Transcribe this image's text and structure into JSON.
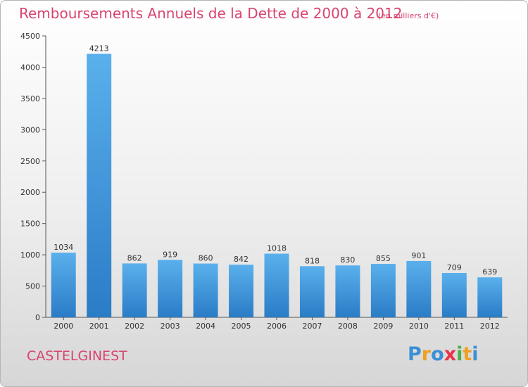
{
  "header": {
    "title": "Remboursements Annuels de la Dette de 2000 à 2012",
    "unit": "(en milliers d'€)"
  },
  "footer": {
    "commune": "CASTELGINEST",
    "logo_letters": [
      "P",
      "r",
      "o",
      "x",
      "i",
      "t",
      "i"
    ],
    "logo_colors": [
      "#3a8fd6",
      "#f0a020",
      "#3a8fd6",
      "#e8334a",
      "#49b049",
      "#f0a020",
      "#3a8fd6"
    ]
  },
  "chart_data": {
    "type": "bar",
    "categories": [
      "2000",
      "2001",
      "2002",
      "2003",
      "2004",
      "2005",
      "2006",
      "2007",
      "2008",
      "2009",
      "2010",
      "2011",
      "2012"
    ],
    "values": [
      1034,
      4213,
      862,
      919,
      860,
      842,
      1018,
      818,
      830,
      855,
      901,
      709,
      639
    ],
    "data_labels": [
      "1034",
      "4213",
      "862",
      "919",
      "860",
      "842",
      "1018",
      "818",
      "830",
      "855",
      "901",
      "709",
      "639"
    ],
    "yticks": [
      0,
      500,
      1000,
      1500,
      2000,
      2500,
      3000,
      3500,
      4000,
      4500
    ],
    "ylim": [
      0,
      4500
    ],
    "grid": false,
    "bar_color_top": "#5ab0ec",
    "bar_color_bottom": "#2a7cc6"
  }
}
